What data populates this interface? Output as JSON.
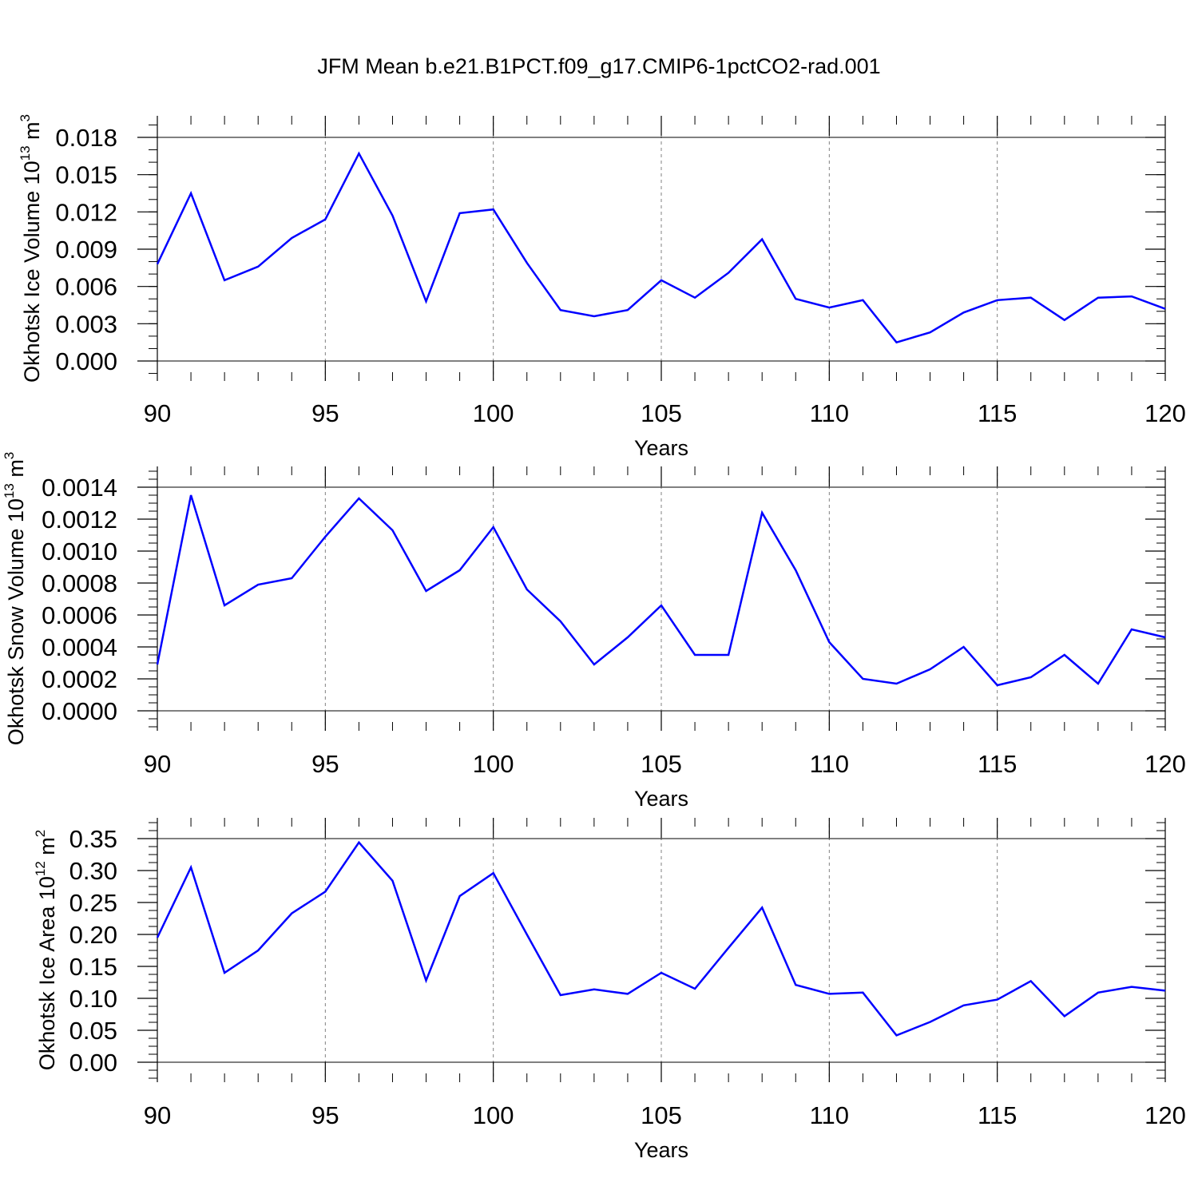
{
  "figure": {
    "title": "JFM Mean b.e21.B1PCT.f09_g17.CMIP6-1pctCO2-rad.001",
    "line_color": "#0000ff",
    "grid_color": "#808080"
  },
  "chart_data": [
    {
      "type": "line",
      "ylabel_main": "Okhotsk Ice Volume 10",
      "ylabel_exp": "13",
      "ylabel_unit": "m",
      "ylabel_unit_exp": "3",
      "xlabel": "Years",
      "xlim": [
        90,
        120
      ],
      "ylim": [
        0,
        0.018
      ],
      "x_ticks": [
        90,
        95,
        100,
        105,
        110,
        115,
        120
      ],
      "y_ticks": [
        "0.000",
        "0.003",
        "0.006",
        "0.009",
        "0.012",
        "0.015",
        "0.018"
      ],
      "y_tick_values": [
        0,
        0.003,
        0.006,
        0.009,
        0.012,
        0.015,
        0.018
      ],
      "y_minor_step": 0.001,
      "x": [
        90,
        91,
        92,
        93,
        94,
        95,
        96,
        97,
        98,
        99,
        100,
        101,
        102,
        103,
        104,
        105,
        106,
        107,
        108,
        109,
        110,
        111,
        112,
        113,
        114,
        115,
        116,
        117,
        118,
        119,
        120
      ],
      "values": [
        0.0078,
        0.0135,
        0.0065,
        0.0076,
        0.0099,
        0.0114,
        0.0167,
        0.0117,
        0.0048,
        0.0119,
        0.0122,
        0.0079,
        0.0041,
        0.0036,
        0.0041,
        0.0065,
        0.0051,
        0.0071,
        0.0098,
        0.005,
        0.0043,
        0.0049,
        0.0015,
        0.0023,
        0.0039,
        0.0049,
        0.0051,
        0.0033,
        0.0051,
        0.0052,
        0.0042
      ]
    },
    {
      "type": "line",
      "ylabel_main": "Okhotsk Snow Volume 10",
      "ylabel_exp": "13",
      "ylabel_unit": "m",
      "ylabel_unit_exp": "3",
      "xlabel": "Years",
      "xlim": [
        90,
        120
      ],
      "ylim": [
        0,
        0.0014
      ],
      "x_ticks": [
        90,
        95,
        100,
        105,
        110,
        115,
        120
      ],
      "y_ticks": [
        "0.0000",
        "0.0002",
        "0.0004",
        "0.0006",
        "0.0008",
        "0.0010",
        "0.0012",
        "0.0014"
      ],
      "y_tick_values": [
        0,
        0.0002,
        0.0004,
        0.0006,
        0.0008,
        0.001,
        0.0012,
        0.0014
      ],
      "y_minor_step": 5e-05,
      "x": [
        90,
        91,
        92,
        93,
        94,
        95,
        96,
        97,
        98,
        99,
        100,
        101,
        102,
        103,
        104,
        105,
        106,
        107,
        108,
        109,
        110,
        111,
        112,
        113,
        114,
        115,
        116,
        117,
        118,
        119,
        120
      ],
      "values": [
        0.00029,
        0.00135,
        0.00066,
        0.00079,
        0.00083,
        0.00109,
        0.00133,
        0.00113,
        0.00075,
        0.00088,
        0.00115,
        0.00076,
        0.00056,
        0.00029,
        0.00046,
        0.00066,
        0.00035,
        0.00035,
        0.00124,
        0.00088,
        0.00043,
        0.0002,
        0.00017,
        0.00026,
        0.0004,
        0.00016,
        0.00021,
        0.00035,
        0.00017,
        0.00051,
        0.00046
      ]
    },
    {
      "type": "line",
      "ylabel_main": "Okhotsk Ice Area 10",
      "ylabel_exp": "12",
      "ylabel_unit": "m",
      "ylabel_unit_exp": "2",
      "xlabel": "Years",
      "xlim": [
        90,
        120
      ],
      "ylim": [
        0,
        0.35
      ],
      "x_ticks": [
        90,
        95,
        100,
        105,
        110,
        115,
        120
      ],
      "y_ticks": [
        "0.00",
        "0.05",
        "0.10",
        "0.15",
        "0.20",
        "0.25",
        "0.30",
        "0.35"
      ],
      "y_tick_values": [
        0,
        0.05,
        0.1,
        0.15,
        0.2,
        0.25,
        0.3,
        0.35
      ],
      "y_minor_step": 0.0125,
      "x": [
        90,
        91,
        92,
        93,
        94,
        95,
        96,
        97,
        98,
        99,
        100,
        101,
        102,
        103,
        104,
        105,
        106,
        107,
        108,
        109,
        110,
        111,
        112,
        113,
        114,
        115,
        116,
        117,
        118,
        119,
        120
      ],
      "values": [
        0.195,
        0.305,
        0.14,
        0.175,
        0.233,
        0.267,
        0.344,
        0.284,
        0.128,
        0.26,
        0.296,
        0.2,
        0.105,
        0.114,
        0.107,
        0.14,
        0.115,
        0.179,
        0.242,
        0.121,
        0.107,
        0.109,
        0.042,
        0.063,
        0.089,
        0.098,
        0.127,
        0.072,
        0.109,
        0.118,
        0.112
      ]
    }
  ]
}
